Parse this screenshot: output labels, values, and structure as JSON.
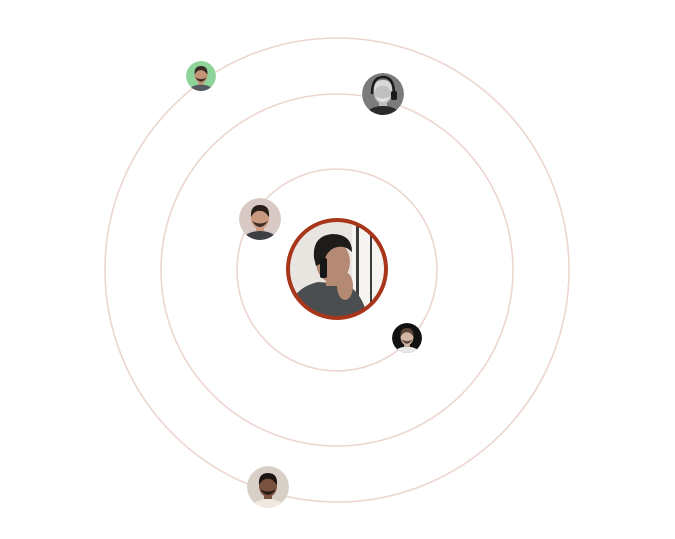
{
  "colors": {
    "background": "#ffffff",
    "orbit_stroke": "#ecd6cf",
    "accent_ring": "#a8361a"
  },
  "center_avatar": {
    "icon": "man-on-phone-portrait",
    "palette": {
      "bg": "#e9e6e2",
      "window": "#f5f4f1",
      "frame": "#3b3b3b",
      "hair": "#1e1c1b",
      "skin": "#b58a74",
      "coat": "#4b4e50",
      "phone": "#161616"
    }
  },
  "orbit_avatars": [
    {
      "icon": "bearded-man-portrait",
      "palette": {
        "bg": "#d9c9c4",
        "hair": "#2a1f1a",
        "skin": "#c99a80",
        "beard": "#3b2a22",
        "shirt": "#3c3f44"
      }
    },
    {
      "icon": "man-with-headphones-portrait",
      "palette": {
        "bg": "#7b7b7b",
        "hair": "#d8d8d8",
        "skin": "#c0c0c0",
        "beard": "#e4e4e4",
        "shirt": "#2a2a2a"
      }
    },
    {
      "icon": "man-green-background-portrait",
      "palette": {
        "bg": "#8ed49a",
        "hair": "#3a2a22",
        "skin": "#c49478",
        "beard": "#3a2a22",
        "shirt": "#555a60"
      }
    },
    {
      "icon": "smiling-man-dark-background-portrait",
      "palette": {
        "bg": "#111111",
        "hair": "#5a4538",
        "skin": "#d2b5a2",
        "beard": "#5a4538",
        "shirt": "#e8e8e8"
      }
    },
    {
      "icon": "man-light-background-portrait",
      "palette": {
        "bg": "#d8cfc7",
        "hair": "#1e1412",
        "skin": "#7a5240",
        "beard": "#2a1c17",
        "shirt": "#efe9e2"
      }
    }
  ]
}
